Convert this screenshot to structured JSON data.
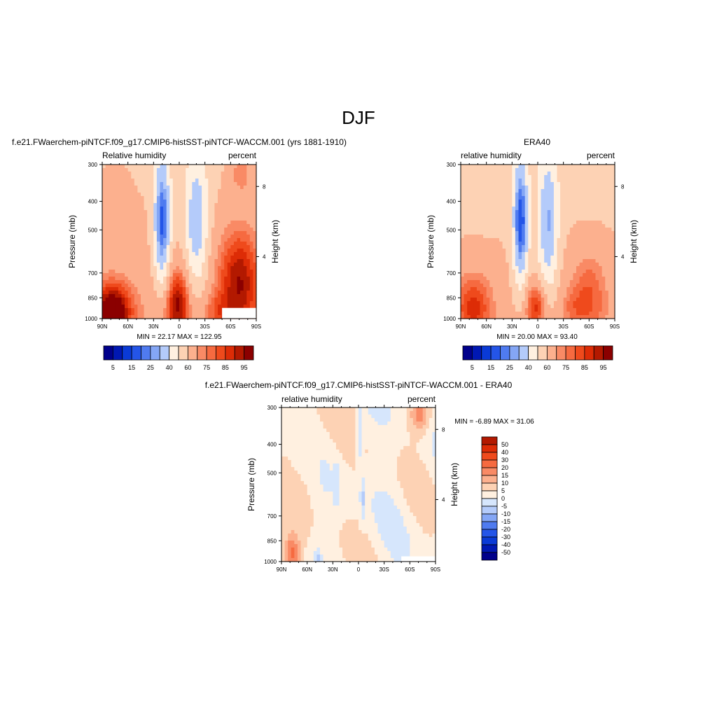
{
  "page_title": "DJF",
  "colors": {
    "blue_scale": [
      "#00008b",
      "#0018b3",
      "#0a3ad6",
      "#2455e8",
      "#4f7bf0",
      "#84a6f5",
      "#b4cbfa",
      "#d6e6fc"
    ],
    "red_scale": [
      "#fff0e0",
      "#fdd2b4",
      "#fcb08e",
      "#f98a65",
      "#f66a40",
      "#ef4a1c",
      "#dd2c06",
      "#b31900",
      "#8b0000"
    ],
    "missing": "#ffffff"
  },
  "chart_data": [
    {
      "type": "heatmap",
      "panel": "model",
      "title": "f.e21.FWaerchem-piNTCF.f09_g17.CMIP6-histSST-piNTCF-WACCM.001 (yrs 1881-1910)",
      "left_label": "Relative humidity",
      "right_label": "percent",
      "ylabel": "Pressure (mb)",
      "ylabel_right": "Height (km)",
      "x_ticks": [
        "90N",
        "60N",
        "30N",
        "0",
        "30S",
        "60S",
        "90S"
      ],
      "x_values": [
        90,
        60,
        30,
        0,
        -30,
        -60,
        -90
      ],
      "y_ticks": [
        "300",
        "400",
        "500",
        "700",
        "850",
        "1000"
      ],
      "y_values": [
        300,
        400,
        500,
        700,
        850,
        1000
      ],
      "ylim": [
        300,
        1000
      ],
      "right_ticks": [
        "8",
        "4"
      ],
      "right_tick_pressure": [
        356,
        616
      ],
      "stats": "MIN =  22.17  MAX = 122.95",
      "min": 22.17,
      "max": 122.95,
      "levels": [
        5,
        10,
        15,
        20,
        25,
        30,
        40,
        50,
        60,
        70,
        75,
        80,
        85,
        90,
        95
      ],
      "colorbar_labels": [
        "5",
        "15",
        "25",
        "40",
        "60",
        "75",
        "85",
        "95"
      ],
      "missing_box": {
        "lat": [
          -50,
          -90
        ],
        "p": [
          920,
          1000
        ]
      }
    },
    {
      "type": "heatmap",
      "panel": "obs",
      "title": "ERA40",
      "left_label": "relative humidity",
      "right_label": "percent",
      "ylabel": "Pressure (mb)",
      "ylabel_right": "Height (km)",
      "x_ticks": [
        "90N",
        "60N",
        "30N",
        "0",
        "30S",
        "60S",
        "90S"
      ],
      "x_values": [
        90,
        60,
        30,
        0,
        -30,
        -60,
        -90
      ],
      "y_ticks": [
        "300",
        "400",
        "500",
        "700",
        "850",
        "1000"
      ],
      "y_values": [
        300,
        400,
        500,
        700,
        850,
        1000
      ],
      "ylim": [
        300,
        1000
      ],
      "right_ticks": [
        "8",
        "4"
      ],
      "right_tick_pressure": [
        356,
        616
      ],
      "stats": "MIN =  20.00  MAX =  93.40",
      "min": 20.0,
      "max": 93.4,
      "levels": [
        5,
        10,
        15,
        20,
        25,
        30,
        40,
        50,
        60,
        70,
        75,
        80,
        85,
        90,
        95
      ],
      "colorbar_labels": [
        "5",
        "15",
        "25",
        "40",
        "60",
        "75",
        "85",
        "95"
      ]
    },
    {
      "type": "heatmap",
      "panel": "diff",
      "title": "f.e21.FWaerchem-piNTCF.f09_g17.CMIP6-histSST-piNTCF-WACCM.001 - ERA40",
      "left_label": "relative humidity",
      "right_label": "percent",
      "ylabel": "Pressure (mb)",
      "ylabel_right": "Height (km)",
      "x_ticks": [
        "90N",
        "60N",
        "30N",
        "0",
        "30S",
        "60S",
        "90S"
      ],
      "x_values": [
        90,
        60,
        30,
        0,
        -30,
        -60,
        -90
      ],
      "y_ticks": [
        "300",
        "400",
        "500",
        "700",
        "850",
        "1000"
      ],
      "y_values": [
        300,
        400,
        500,
        700,
        850,
        1000
      ],
      "ylim": [
        300,
        1000
      ],
      "right_ticks": [
        "8",
        "4"
      ],
      "right_tick_pressure": [
        356,
        616
      ],
      "stats": "MIN =  -6.89  MAX =  31.06",
      "min": -6.89,
      "max": 31.06,
      "levels": [
        -50,
        -40,
        -30,
        -20,
        -15,
        -10,
        -5,
        0,
        5,
        10,
        15,
        20,
        30,
        40,
        50
      ],
      "colorbar_labels": [
        "50",
        "40",
        "30",
        "20",
        "15",
        "10",
        "5",
        "0",
        "-5",
        "-10",
        "-15",
        "-20",
        "-30",
        "-40",
        "-50"
      ],
      "missing_box": {
        "lat": [
          -50,
          -90
        ],
        "p": [
          960,
          1000
        ]
      }
    }
  ]
}
